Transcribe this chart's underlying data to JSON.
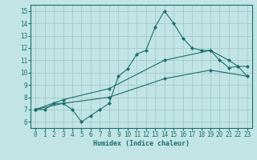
{
  "xlabel": "Humidex (Indice chaleur)",
  "bg_color": "#c2e4e4",
  "grid_color": "#a8cccc",
  "line_color": "#1a6e6e",
  "xlim": [
    -0.5,
    23.5
  ],
  "ylim": [
    5.5,
    15.5
  ],
  "xticks": [
    0,
    1,
    2,
    3,
    4,
    5,
    6,
    7,
    8,
    9,
    10,
    11,
    12,
    13,
    14,
    15,
    16,
    17,
    18,
    19,
    20,
    21,
    22,
    23
  ],
  "yticks": [
    6,
    7,
    8,
    9,
    10,
    11,
    12,
    13,
    14,
    15
  ],
  "line1_x": [
    0,
    1,
    2,
    3,
    4,
    5,
    6,
    7,
    8,
    9,
    10,
    11,
    12,
    13,
    14,
    15,
    16,
    17,
    18,
    19,
    20,
    21,
    22,
    23
  ],
  "line1_y": [
    7.0,
    7.0,
    7.5,
    7.5,
    7.0,
    6.0,
    6.5,
    7.0,
    7.5,
    9.7,
    10.3,
    11.5,
    11.8,
    13.7,
    15.0,
    14.0,
    12.8,
    12.0,
    11.8,
    11.8,
    11.0,
    10.4,
    10.5,
    9.7
  ],
  "line2_x": [
    0,
    3,
    8,
    14,
    19,
    21,
    22,
    23
  ],
  "line2_y": [
    7.0,
    7.8,
    8.7,
    11.0,
    11.8,
    11.0,
    10.5,
    10.5
  ],
  "line3_x": [
    0,
    3,
    8,
    14,
    19,
    23
  ],
  "line3_y": [
    7.0,
    7.5,
    8.0,
    9.5,
    10.2,
    9.7
  ]
}
